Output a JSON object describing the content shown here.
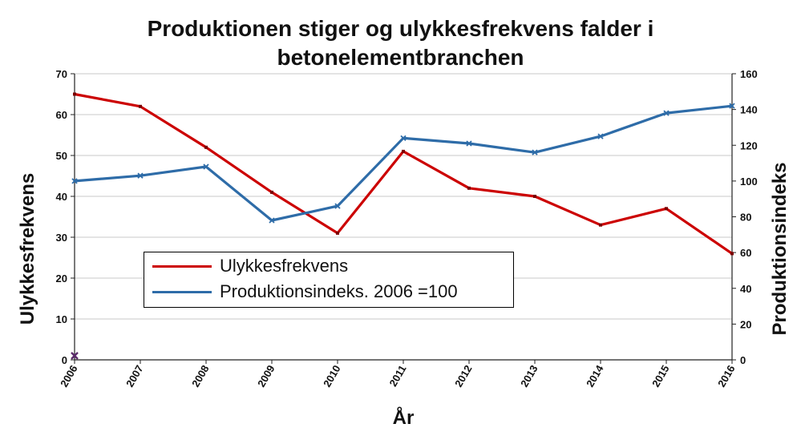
{
  "chart_data": {
    "type": "line",
    "title_lines": [
      "Produktionen stiger og ulykkesfrekvens falder i",
      "betonelementbranchen"
    ],
    "xlabel": "År",
    "ylabel_left": "Ulykkesfrekvens",
    "ylabel_right": "Produktionsindeks",
    "categories": [
      "2006",
      "2007",
      "2008",
      "2009",
      "2010",
      "2011",
      "2012",
      "2013",
      "2014",
      "2015",
      "2016"
    ],
    "left_axis": {
      "min": 0,
      "max": 70,
      "ticks": [
        0,
        10,
        20,
        30,
        40,
        50,
        60,
        70
      ]
    },
    "right_axis": {
      "min": 0,
      "max": 160,
      "ticks": [
        0,
        20,
        40,
        60,
        80,
        100,
        120,
        140,
        160
      ]
    },
    "grid": true,
    "legend_position": "center-left",
    "series": [
      {
        "name": "Ulykkesfrekvens",
        "axis": "left",
        "color": "#cc0000",
        "values": [
          65,
          62,
          52,
          41,
          31,
          51,
          42,
          40,
          33,
          37,
          26
        ]
      },
      {
        "name": "Produktionsindeks. 2006 =100",
        "axis": "right",
        "color": "#2e6ca8",
        "values": [
          100,
          103,
          108,
          78,
          86,
          124,
          121,
          116,
          125,
          138,
          142
        ]
      }
    ],
    "stray_marker": {
      "x": "2006",
      "y": 1,
      "axis": "left",
      "color": "#5a2a6a"
    }
  }
}
